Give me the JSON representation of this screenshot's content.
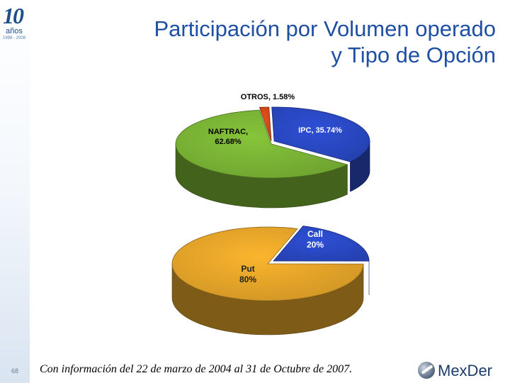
{
  "slide": {
    "title_line1": "Participación por Volumen operado",
    "title_line2": "y Tipo de Opción",
    "page_number": "68",
    "footnote": "Con información del 22 de marzo de 2004 al 31 de Octubre de 2007."
  },
  "anniversary_logo": {
    "number": "10",
    "word": "años",
    "years": "1998 - 2008"
  },
  "brand_logo": {
    "name": "MexDer"
  },
  "chart_data": [
    {
      "type": "pie",
      "title": "",
      "style": "3d",
      "slices": [
        {
          "label": "IPC",
          "value": 35.74,
          "display": "IPC, 35.74%",
          "color": "#2d4fd6"
        },
        {
          "label": "NAFTRAC",
          "value": 62.68,
          "display": "NAFTRAC, 62.68%",
          "color": "#86c53a"
        },
        {
          "label": "OTROS",
          "value": 1.58,
          "display": "OTROS, 1.58%",
          "color": "#e8501a"
        }
      ]
    },
    {
      "type": "pie",
      "title": "",
      "style": "3d",
      "slices": [
        {
          "label": "Call",
          "value": 20,
          "display": "Call 20%",
          "color": "#2d4fd6"
        },
        {
          "label": "Put",
          "value": 80,
          "display": "Put 80%",
          "color": "#fbb52d"
        }
      ]
    }
  ]
}
